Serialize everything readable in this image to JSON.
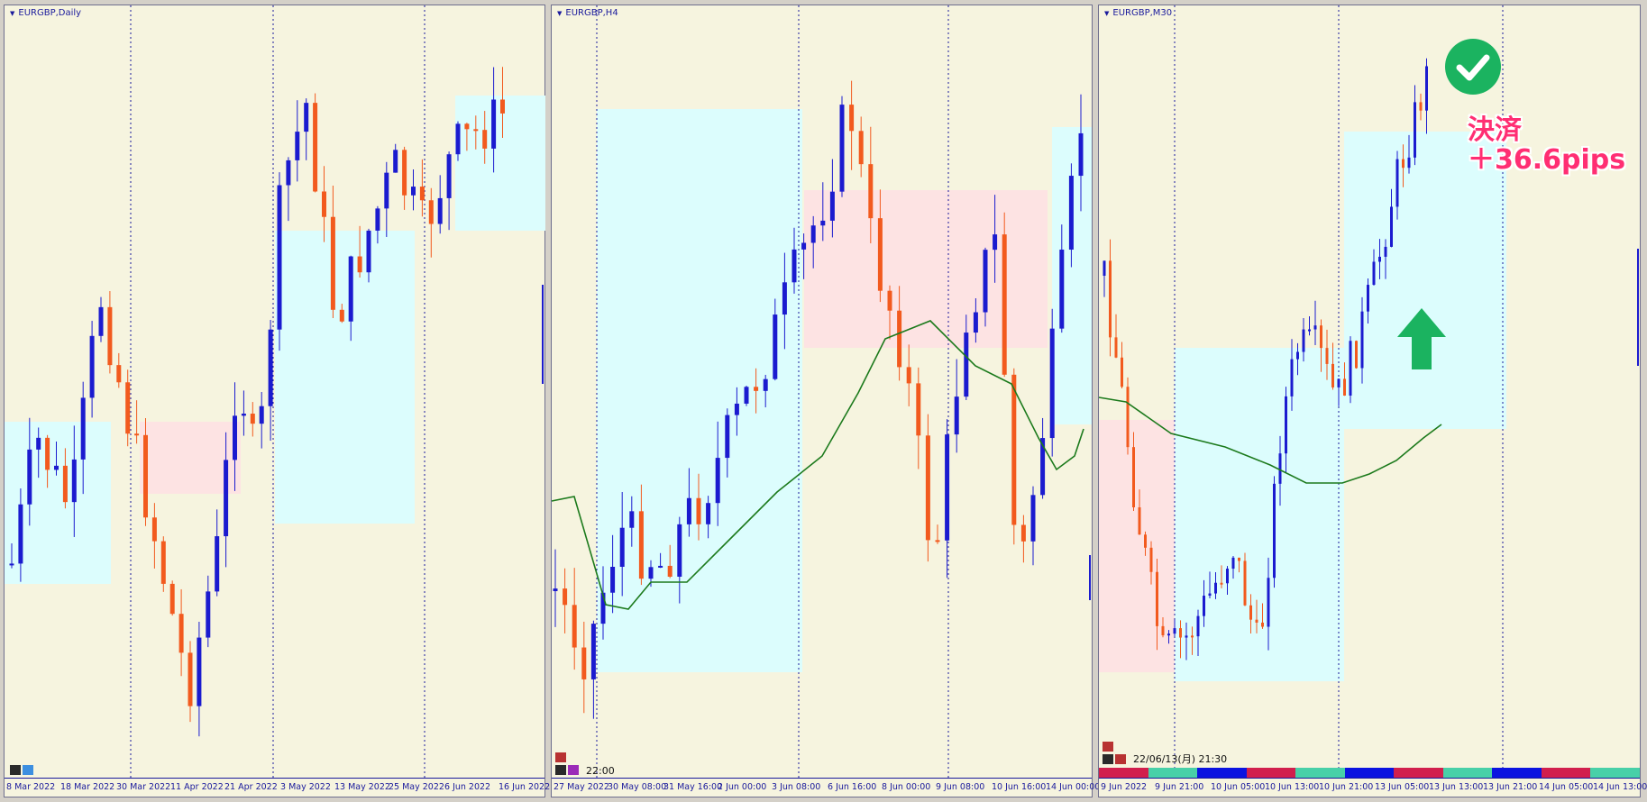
{
  "panels": [
    {
      "title": "EURGBP,Daily",
      "xlabels": [
        "8 Mar 2022",
        "18 Mar 2022",
        "30 Mar 2022",
        "11 Apr 2022",
        "21 Apr 2022",
        "3 May 2022",
        "13 May 2022",
        "25 May 2022",
        "6 Jun 2022",
        "16 Jun 2022"
      ]
    },
    {
      "title": "EURGBP,H4",
      "stamp": "22:00",
      "xlabels": [
        "27 May 2022",
        "30 May 08:00",
        "31 May 16:00",
        "2 Jun 00:00",
        "3 Jun 08:00",
        "6 Jun 16:00",
        "8 Jun 00:00",
        "9 Jun 08:00",
        "10 Jun 16:00",
        "14 Jun 00:00"
      ]
    },
    {
      "title": "EURGBP,M30",
      "stamp": "22/06/13(月) 21:30",
      "xlabels": [
        "9 Jun 2022",
        "9 Jun 21:00",
        "10 Jun 05:00",
        "10 Jun 13:00",
        "10 Jun 21:00",
        "13 Jun 05:00",
        "13 Jun 13:00",
        "13 Jun 21:00",
        "14 Jun 05:00",
        "14 Jun 13:00"
      ]
    }
  ],
  "annotation": {
    "status_line": "決済",
    "profit_line": "＋36.6pips",
    "check_icon": "check-circle-icon",
    "arrow_icon": "up-arrow-icon"
  },
  "colors": {
    "bull": "#1b1bcf",
    "bear": "#f25a1e",
    "ma": "#1c7a1c",
    "bg": "#f6f4df",
    "zone_buy": "#dcfdfd",
    "zone_sell": "#fde3e3",
    "badge": "#1bb360",
    "text_pink": "#ff2e73"
  }
}
